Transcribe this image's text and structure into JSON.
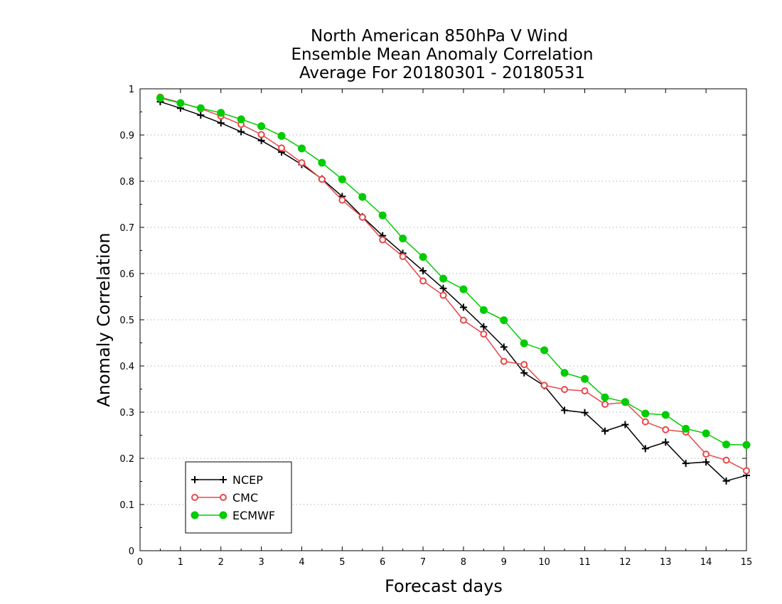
{
  "chart_data": {
    "type": "line",
    "title": [
      "North American 850hPa V Wind",
      "Ensemble Mean Anomaly Correlation",
      "Average For 20180301 - 20180531"
    ],
    "xlabel": "Forecast days",
    "ylabel": "Anomaly Correlation",
    "xlim": [
      0,
      15
    ],
    "ylim": [
      0,
      1
    ],
    "xticks": [
      "0",
      "1",
      "2",
      "3",
      "4",
      "5",
      "6",
      "7",
      "8",
      "9",
      "10",
      "11",
      "12",
      "13",
      "14",
      "15"
    ],
    "yticks": [
      "0",
      "0.1",
      "0.2",
      "0.3",
      "0.4",
      "0.5",
      "0.6",
      "0.7",
      "0.8",
      "0.9",
      "1"
    ],
    "grid": "horizontal dotted",
    "legend_position": "bottom-left",
    "x": [
      0.5,
      1,
      1.5,
      2,
      2.5,
      3,
      3.5,
      4,
      4.5,
      5,
      5.5,
      6,
      6.5,
      7,
      7.5,
      8,
      8.5,
      9,
      9.5,
      10,
      10.5,
      11,
      11.5,
      12,
      12.5,
      13,
      13.5,
      14,
      14.5,
      15
    ],
    "series": [
      {
        "name": "NCEP",
        "color": "#000000",
        "marker": "plus",
        "values": [
          0.972,
          0.958,
          0.943,
          0.926,
          0.907,
          0.888,
          0.863,
          0.836,
          0.805,
          0.767,
          0.723,
          0.682,
          0.644,
          0.606,
          0.568,
          0.527,
          0.485,
          0.441,
          0.385,
          0.357,
          0.304,
          0.299,
          0.259,
          0.273,
          0.221,
          0.235,
          0.189,
          0.192,
          0.151,
          0.163
        ]
      },
      {
        "name": "CMC",
        "color": "#e8474a",
        "marker": "open-circle",
        "values": [
          0.982,
          0.97,
          0.957,
          0.941,
          0.923,
          0.901,
          0.872,
          0.84,
          0.804,
          0.759,
          0.722,
          0.673,
          0.637,
          0.584,
          0.553,
          0.499,
          0.469,
          0.41,
          0.403,
          0.358,
          0.349,
          0.346,
          0.317,
          0.321,
          0.279,
          0.262,
          0.257,
          0.209,
          0.196,
          0.173
        ]
      },
      {
        "name": "ECMWF",
        "color": "#00cc00",
        "marker": "filled-circle",
        "values": [
          0.98,
          0.969,
          0.958,
          0.948,
          0.934,
          0.919,
          0.898,
          0.871,
          0.84,
          0.804,
          0.766,
          0.726,
          0.676,
          0.636,
          0.589,
          0.566,
          0.521,
          0.499,
          0.449,
          0.434,
          0.385,
          0.372,
          0.332,
          0.322,
          0.297,
          0.294,
          0.264,
          0.254,
          0.23,
          0.229
        ]
      }
    ]
  }
}
